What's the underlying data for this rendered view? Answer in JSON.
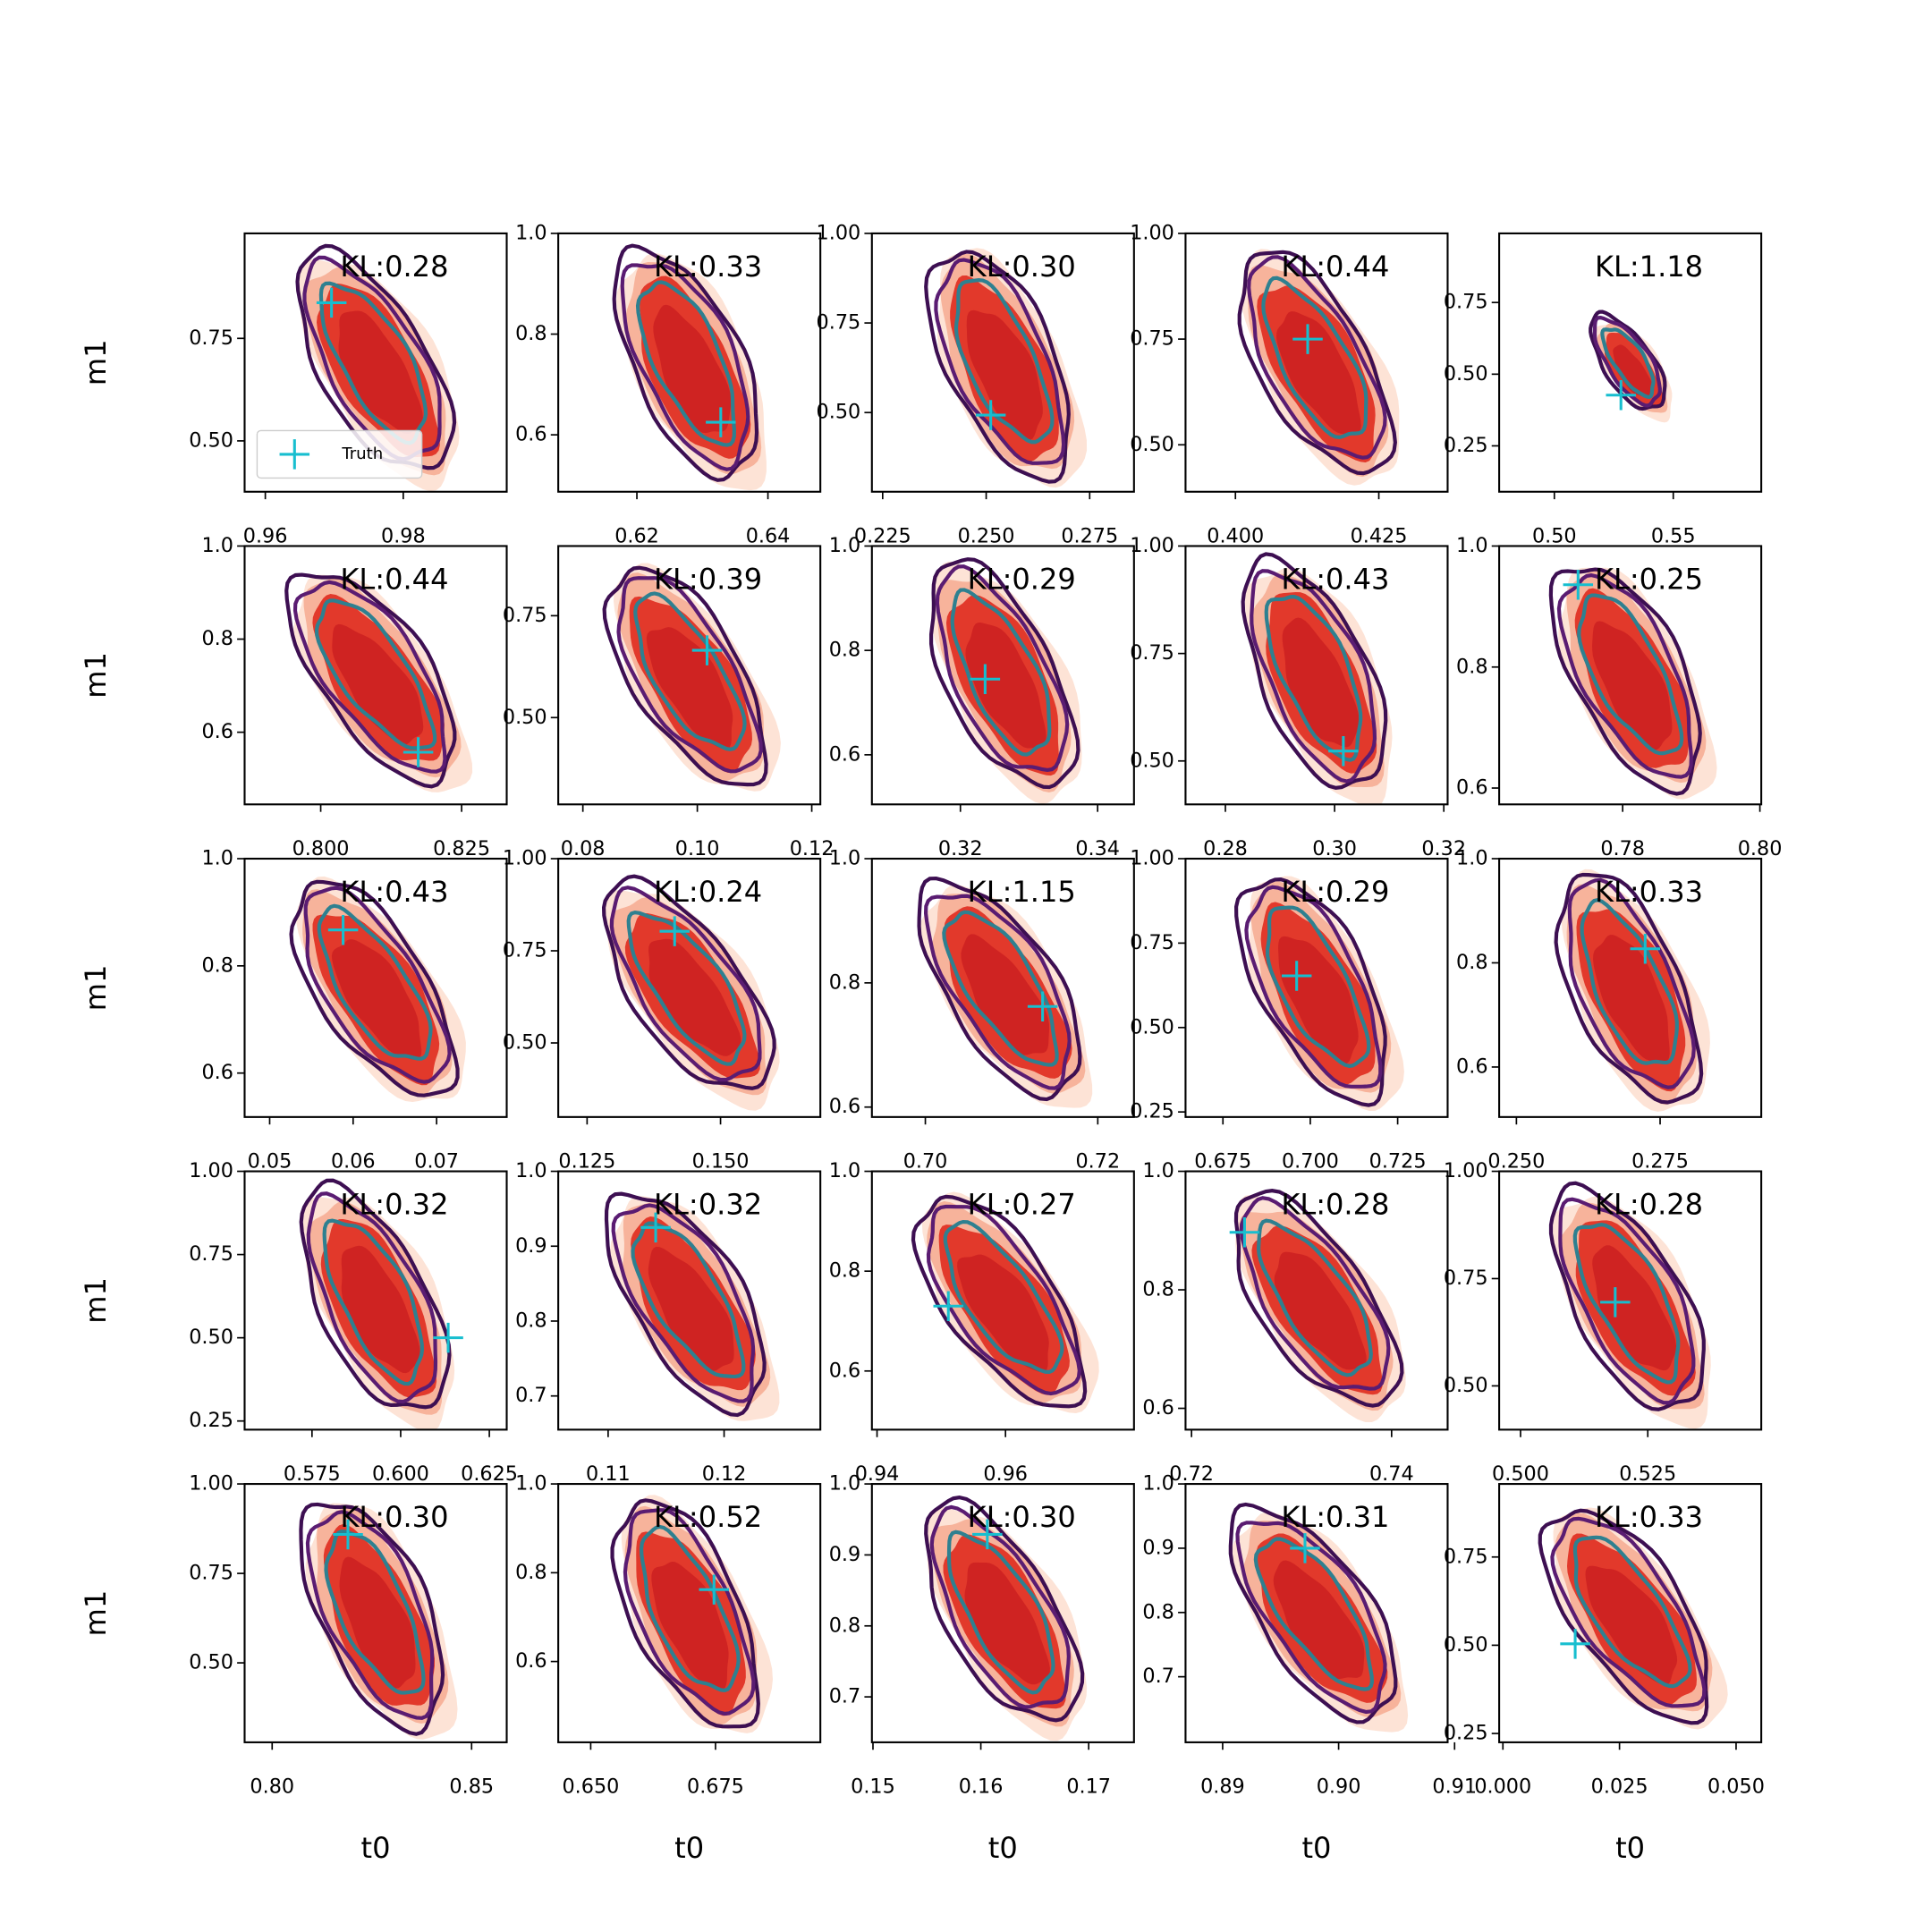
{
  "chart_data": [
    {
      "type": "scatter",
      "annotation": "KL:0.28",
      "ylabel": "m1",
      "legend": "lower left",
      "xlim": [
        0.957,
        0.995
      ],
      "xticks": [
        0.96,
        0.98
      ],
      "ylim": [
        0.376,
        1.006
      ],
      "yticks": [
        {
          "value": 0.5,
          "label": "0.50"
        },
        0.75
      ],
      "series": [
        {
          "name": "Truth",
          "color": "#17becf",
          "x": [
            0.9696
          ],
          "values": [
            0.837
          ]
        }
      ]
    },
    {
      "type": "scatter",
      "annotation": "KL:0.33",
      "xlim": [
        0.608,
        0.648
      ],
      "xticks": [
        0.62,
        0.64
      ],
      "ylim": [
        0.487,
        1.0
      ],
      "yticks": [
        0.6,
        0.8,
        {
          "value": 1,
          "label": "1.0"
        }
      ],
      "series": [
        {
          "color": "#17becf",
          "x": [
            0.6328
          ],
          "values": [
            0.625
          ]
        }
      ]
    },
    {
      "type": "scatter",
      "annotation": "KL:0.30",
      "xlim": [
        0.2224,
        0.2857
      ],
      "xticks": [
        0.225,
        {
          "value": 0.25,
          "label": "0.250"
        },
        0.275
      ],
      "ylim": [
        0.279,
        1.0
      ],
      "yticks": [
        {
          "value": 0.5,
          "label": "0.50"
        },
        0.75,
        {
          "value": 1,
          "label": "1.00"
        }
      ],
      "series": [
        {
          "color": "#17becf",
          "x": [
            0.2511
          ],
          "values": [
            0.493
          ]
        }
      ]
    },
    {
      "type": "scatter",
      "annotation": "KL:0.44",
      "xlim": [
        0.3913,
        0.437
      ],
      "xticks": [
        {
          "value": 0.4,
          "label": "0.400"
        },
        0.425
      ],
      "ylim": [
        0.389,
        1.0
      ],
      "yticks": [
        {
          "value": 0.5,
          "label": "0.50"
        },
        0.75,
        {
          "value": 1,
          "label": "1.00"
        }
      ],
      "series": [
        {
          "color": "#17becf",
          "x": [
            0.4126
          ],
          "values": [
            0.75
          ]
        }
      ]
    },
    {
      "type": "scatter",
      "annotation": "KL:1.18",
      "xlim": [
        0.4768,
        0.587
      ],
      "xticks": [
        {
          "value": 0.5,
          "label": "0.50"
        },
        0.55
      ],
      "ylim": [
        0.09,
        0.991
      ],
      "yticks": [
        0.25,
        {
          "value": 0.5,
          "label": "0.50"
        },
        0.75
      ],
      "series": [
        {
          "color": "#17becf",
          "x": [
            0.528
          ],
          "values": [
            0.427
          ]
        }
      ]
    },
    {
      "type": "scatter",
      "annotation": "KL:0.44",
      "ylabel": "m1",
      "xlim": [
        0.7865,
        0.833
      ],
      "xticks": [
        {
          "value": 0.8,
          "label": "0.800"
        },
        0.825
      ],
      "ylim": [
        0.445,
        1.0
      ],
      "yticks": [
        0.6,
        0.8,
        {
          "value": 1,
          "label": "1.0"
        }
      ],
      "series": [
        {
          "color": "#17becf",
          "x": [
            0.8173
          ],
          "values": [
            0.557
          ]
        }
      ]
    },
    {
      "type": "scatter",
      "annotation": "KL:0.39",
      "xlim": [
        0.0757,
        0.1215
      ],
      "xticks": [
        0.08,
        {
          "value": 0.1,
          "label": "0.10"
        },
        0.12
      ],
      "ylim": [
        0.287,
        0.921
      ],
      "yticks": [
        {
          "value": 0.5,
          "label": "0.50"
        },
        0.75
      ],
      "series": [
        {
          "color": "#17becf",
          "x": [
            0.1017
          ],
          "values": [
            0.665
          ]
        }
      ]
    },
    {
      "type": "scatter",
      "annotation": "KL:0.29",
      "xlim": [
        0.3071,
        0.3453
      ],
      "xticks": [
        0.32,
        0.34
      ],
      "ylim": [
        0.505,
        1.0
      ],
      "yticks": [
        0.6,
        0.8,
        {
          "value": 1,
          "label": "1.0"
        }
      ],
      "series": [
        {
          "color": "#17becf",
          "x": [
            0.3236
          ],
          "values": [
            0.745
          ]
        }
      ]
    },
    {
      "type": "scatter",
      "annotation": "KL:0.43",
      "xlim": [
        0.2727,
        0.3207
      ],
      "xticks": [
        0.28,
        {
          "value": 0.3,
          "label": "0.30"
        },
        0.32
      ],
      "ylim": [
        0.399,
        1.0
      ],
      "yticks": [
        {
          "value": 0.5,
          "label": "0.50"
        },
        0.75,
        {
          "value": 1,
          "label": "1.00"
        }
      ],
      "series": [
        {
          "color": "#17becf",
          "x": [
            0.3016
          ],
          "values": [
            0.523
          ]
        }
      ]
    },
    {
      "type": "scatter",
      "annotation": "KL:0.25",
      "xlim": [
        0.762,
        0.8002
      ],
      "xticks": [
        0.78,
        {
          "value": 0.8,
          "label": "0.80"
        }
      ],
      "ylim": [
        0.573,
        1.0
      ],
      "yticks": [
        0.6,
        0.8,
        {
          "value": 1,
          "label": "1.0"
        }
      ],
      "series": [
        {
          "color": "#17becf",
          "x": [
            0.7735
          ],
          "values": [
            0.936
          ]
        }
      ]
    },
    {
      "type": "scatter",
      "annotation": "KL:0.43",
      "ylabel": "m1",
      "xlim": [
        0.047,
        0.0784
      ],
      "xticks": [
        0.05,
        0.06,
        0.07
      ],
      "ylim": [
        0.518,
        1.0
      ],
      "yticks": [
        0.6,
        0.8,
        {
          "value": 1,
          "label": "1.0"
        }
      ],
      "series": [
        {
          "color": "#17becf",
          "x": [
            0.0588
          ],
          "values": [
            0.867
          ]
        }
      ]
    },
    {
      "type": "scatter",
      "annotation": "KL:0.24",
      "xlim": [
        0.1196,
        0.1687
      ],
      "xticks": [
        0.125,
        {
          "value": 0.15,
          "label": "0.150"
        }
      ],
      "ylim": [
        0.299,
        1.0
      ],
      "yticks": [
        {
          "value": 0.5,
          "label": "0.50"
        },
        0.75,
        {
          "value": 1,
          "label": "1.00"
        }
      ],
      "series": [
        {
          "color": "#17becf",
          "x": [
            0.1414
          ],
          "values": [
            0.803
          ]
        }
      ]
    },
    {
      "type": "scatter",
      "annotation": "KL:1.15",
      "xlim": [
        0.6938,
        0.7242
      ],
      "xticks": [
        {
          "value": 0.7,
          "label": "0.70"
        },
        0.72
      ],
      "ylim": [
        0.584,
        1.0
      ],
      "yticks": [
        0.6,
        0.8,
        {
          "value": 1,
          "label": "1.0"
        }
      ],
      "series": [
        {
          "color": "#17becf",
          "x": [
            0.7136
          ],
          "values": [
            0.762
          ]
        }
      ]
    },
    {
      "type": "scatter",
      "annotation": "KL:0.29",
      "xlim": [
        0.6643,
        0.7393
      ],
      "xticks": [
        0.675,
        {
          "value": 0.7,
          "label": "0.700"
        },
        0.725
      ],
      "ylim": [
        0.235,
        1.0
      ],
      "yticks": [
        0.25,
        {
          "value": 0.5,
          "label": "0.50"
        },
        0.75,
        {
          "value": 1,
          "label": "1.00"
        }
      ],
      "series": [
        {
          "color": "#17becf",
          "x": [
            0.6961
          ],
          "values": [
            0.653
          ]
        }
      ]
    },
    {
      "type": "scatter",
      "annotation": "KL:0.33",
      "xlim": [
        0.247,
        0.2926
      ],
      "xticks": [
        {
          "value": 0.25,
          "label": "0.250"
        },
        0.275
      ],
      "ylim": [
        0.504,
        1.0
      ],
      "yticks": [
        0.6,
        0.8,
        {
          "value": 1,
          "label": "1.0"
        }
      ],
      "series": [
        {
          "color": "#17becf",
          "x": [
            0.2724
          ],
          "values": [
            0.827
          ]
        }
      ]
    },
    {
      "type": "scatter",
      "annotation": "KL:0.32",
      "ylabel": "m1",
      "xlim": [
        0.556,
        0.6299
      ],
      "xticks": [
        0.575,
        {
          "value": 0.6,
          "label": "0.600"
        },
        0.625
      ],
      "ylim": [
        0.224,
        1.0
      ],
      "yticks": [
        0.25,
        {
          "value": 0.5,
          "label": "0.50"
        },
        0.75,
        {
          "value": 1,
          "label": "1.00"
        }
      ],
      "series": [
        {
          "color": "#17becf",
          "x": [
            0.6134
          ],
          "values": [
            0.5
          ]
        }
      ]
    },
    {
      "type": "scatter",
      "annotation": "KL:0.32",
      "xlim": [
        0.1057,
        0.1283
      ],
      "xticks": [
        0.11,
        0.12
      ],
      "ylim": [
        0.655,
        1.0
      ],
      "yticks": [
        0.7,
        0.8,
        0.9,
        {
          "value": 1,
          "label": "1.0"
        }
      ],
      "series": [
        {
          "color": "#17becf",
          "x": [
            0.1141
          ],
          "values": [
            0.925
          ]
        }
      ]
    },
    {
      "type": "scatter",
      "annotation": "KL:0.27",
      "xlim": [
        0.9392,
        0.98
      ],
      "xticks": [
        0.94,
        0.96
      ],
      "ylim": [
        0.4825,
        1.0
      ],
      "yticks": [
        0.6,
        0.8,
        {
          "value": 1,
          "label": "1.0"
        }
      ],
      "series": [
        {
          "color": "#17becf",
          "x": [
            0.9511
          ],
          "values": [
            0.73
          ]
        }
      ]
    },
    {
      "type": "scatter",
      "annotation": "KL:0.28",
      "xlim": [
        0.7194,
        0.7456
      ],
      "xticks": [
        0.72,
        0.74
      ],
      "ylim": [
        0.564,
        1.0
      ],
      "yticks": [
        0.6,
        0.8,
        {
          "value": 1,
          "label": "1.0"
        }
      ],
      "series": [
        {
          "color": "#17becf",
          "x": [
            0.7253
          ],
          "values": [
            0.897
          ]
        }
      ]
    },
    {
      "type": "scatter",
      "annotation": "KL:0.28",
      "xlim": [
        0.4958,
        0.5473
      ],
      "xticks": [
        {
          "value": 0.5,
          "label": "0.500"
        },
        0.525
      ],
      "ylim": [
        0.398,
        1.0
      ],
      "yticks": [
        {
          "value": 0.5,
          "label": "0.50"
        },
        0.75,
        {
          "value": 1,
          "label": "1.00"
        }
      ],
      "series": [
        {
          "color": "#17becf",
          "x": [
            0.5186
          ],
          "values": [
            0.695
          ]
        }
      ]
    },
    {
      "type": "scatter",
      "annotation": "KL:0.30",
      "ylabel": "m1",
      "xlabel": "t0",
      "xlim": [
        0.7931,
        0.8588
      ],
      "xticks": [
        {
          "value": 0.8,
          "label": "0.80"
        },
        0.85
      ],
      "ylim": [
        0.278,
        1.0
      ],
      "yticks": [
        {
          "value": 0.5,
          "label": "0.50"
        },
        0.75,
        {
          "value": 1,
          "label": "1.00"
        }
      ],
      "series": [
        {
          "color": "#17becf",
          "x": [
            0.819
          ],
          "values": [
            0.859
          ]
        }
      ]
    },
    {
      "type": "scatter",
      "annotation": "KL:0.52",
      "xlabel": "t0",
      "xlim": [
        0.6435,
        0.696
      ],
      "xticks": [
        {
          "value": 0.65,
          "label": "0.650"
        },
        0.675
      ],
      "ylim": [
        0.418,
        1.0
      ],
      "yticks": [
        0.6,
        0.8,
        {
          "value": 1,
          "label": "1.0"
        }
      ],
      "series": [
        {
          "color": "#17becf",
          "x": [
            0.6747
          ],
          "values": [
            0.762
          ]
        }
      ]
    },
    {
      "type": "scatter",
      "annotation": "KL:0.30",
      "xlabel": "t0",
      "xlim": [
        0.1499,
        0.1742
      ],
      "xticks": [
        0.15,
        0.16,
        0.17
      ],
      "ylim": [
        0.636,
        1.0
      ],
      "yticks": [
        0.7,
        0.8,
        0.9,
        {
          "value": 1,
          "label": "1.0"
        }
      ],
      "series": [
        {
          "color": "#17becf",
          "x": [
            0.1606
          ],
          "values": [
            0.929
          ]
        }
      ]
    },
    {
      "type": "scatter",
      "annotation": "KL:0.31",
      "xlabel": "t0",
      "xlim": [
        0.8868,
        0.9094
      ],
      "xticks": [
        0.89,
        {
          "value": 0.9,
          "label": "0.90"
        },
        0.91
      ],
      "ylim": [
        0.598,
        1.0
      ],
      "yticks": [
        0.7,
        0.8,
        0.9,
        {
          "value": 1,
          "label": "1.0"
        }
      ],
      "series": [
        {
          "color": "#17becf",
          "x": [
            0.8971
          ],
          "values": [
            0.9
          ]
        }
      ]
    },
    {
      "type": "scatter",
      "annotation": "KL:0.33",
      "xlabel": "t0",
      "xlim": [
        -0.0008,
        0.0554
      ],
      "xticks": [
        {
          "value": 0,
          "label": "0.000"
        },
        0.025,
        {
          "value": 0.05,
          "label": "0.050"
        }
      ],
      "ylim": [
        0.225,
        0.957
      ],
      "yticks": [
        0.25,
        {
          "value": 0.5,
          "label": "0.50"
        },
        0.75
      ],
      "series": [
        {
          "color": "#17becf",
          "x": [
            0.0155
          ],
          "values": [
            0.504
          ]
        }
      ]
    }
  ]
}
